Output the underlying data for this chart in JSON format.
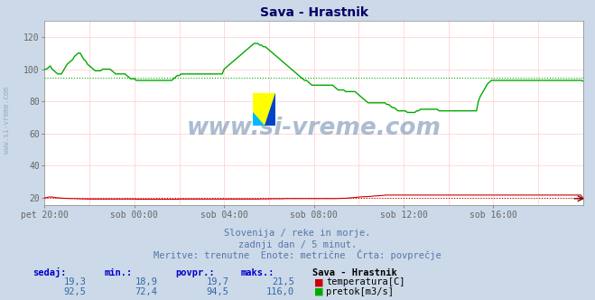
{
  "title": "Sava - Hrastnik",
  "background_color": "#ccd9e8",
  "plot_bg_color": "#ffffff",
  "grid_color": "#ffcccc",
  "xlim": [
    0,
    288
  ],
  "ylim": [
    15,
    130
  ],
  "yticks": [
    20,
    40,
    60,
    80,
    100,
    120
  ],
  "xtick_labels": [
    "pet 20:00",
    "sob 00:00",
    "sob 04:00",
    "sob 08:00",
    "sob 12:00",
    "sob 16:00"
  ],
  "xtick_positions": [
    0,
    48,
    96,
    144,
    192,
    240
  ],
  "avg_temp": 19.7,
  "avg_flow": 94.5,
  "temp_color": "#cc0000",
  "flow_color": "#00aa00",
  "watermark": "www.si-vreme.com",
  "subtitle1": "Slovenija / reke in morje.",
  "subtitle2": "zadnji dan / 5 minut.",
  "subtitle3": "Meritve: trenutne  Enote: metrične  Črta: povprečje",
  "footer_headers": [
    "sedaj:",
    "min.:",
    "povpr.:",
    "maks.:"
  ],
  "footer_temp": [
    "19,3",
    "18,9",
    "19,7",
    "21,5"
  ],
  "footer_flow": [
    "92,5",
    "72,4",
    "94,5",
    "116,0"
  ],
  "footer_station": "Sava - Hrastnik",
  "footer_label_temp": "temperatura[C]",
  "footer_label_flow": "pretok[m3/s]",
  "sidebar_text": "www.si-vreme.com",
  "temp_data": [
    19.8,
    20.0,
    20.3,
    20.3,
    20.2,
    20.0,
    19.8,
    19.7,
    19.6,
    19.5,
    19.4,
    19.4,
    19.3,
    19.3,
    19.3,
    19.2,
    19.2,
    19.1,
    19.1,
    19.1,
    19.0,
    19.0,
    19.0,
    19.0,
    19.0,
    19.0,
    19.0,
    19.0,
    19.0,
    19.0,
    19.0,
    19.0,
    19.0,
    19.0,
    19.0,
    19.0,
    19.0,
    19.0,
    19.0,
    19.0,
    19.0,
    19.0,
    19.0,
    18.9,
    18.9,
    18.9,
    18.9,
    18.9,
    18.9,
    18.9,
    18.9,
    18.9,
    18.9,
    18.9,
    18.9,
    18.9,
    18.9,
    18.9,
    18.9,
    18.9,
    18.9,
    18.9,
    18.9,
    19.0,
    19.0,
    19.0,
    19.0,
    19.0,
    19.0,
    19.0,
    19.0,
    19.0,
    19.0,
    19.0,
    19.0,
    19.0,
    19.0,
    19.0,
    19.0,
    19.0,
    19.0,
    19.0,
    19.0,
    19.0,
    19.0,
    19.0,
    19.0,
    19.0,
    19.0,
    19.0,
    19.0,
    19.0,
    19.0,
    19.0,
    19.0,
    19.0,
    19.0,
    19.0,
    19.0,
    19.0,
    19.0,
    19.1,
    19.1,
    19.1,
    19.1,
    19.1,
    19.2,
    19.2,
    19.2,
    19.2,
    19.2,
    19.2,
    19.3,
    19.3,
    19.3,
    19.3,
    19.3,
    19.3,
    19.3,
    19.3,
    19.3,
    19.3,
    19.3,
    19.3,
    19.3,
    19.3,
    19.3,
    19.3,
    19.3,
    19.3,
    19.3,
    19.3,
    19.3,
    19.3,
    19.3,
    19.3,
    19.3,
    19.4,
    19.4,
    19.5,
    19.5,
    19.6,
    19.7,
    19.8,
    19.9,
    20.0,
    20.2,
    20.3,
    20.4,
    20.5,
    20.5,
    20.6,
    20.7,
    20.8,
    21.0,
    21.0,
    21.1,
    21.2,
    21.3,
    21.5,
    21.5,
    21.5,
    21.5,
    21.5,
    21.5,
    21.5,
    21.5,
    21.5,
    21.5,
    21.5,
    21.5,
    21.5,
    21.5,
    21.5,
    21.5,
    21.5,
    21.5,
    21.5,
    21.5,
    21.5,
    21.5,
    21.5,
    21.5,
    21.5,
    21.5,
    21.5,
    21.5,
    21.5,
    21.5,
    21.5,
    21.5,
    21.5,
    21.5,
    21.5,
    21.5,
    21.5,
    21.5,
    21.5,
    21.5,
    21.5,
    21.5,
    21.5,
    21.5,
    21.5,
    21.5,
    21.5,
    21.5,
    21.5,
    21.5,
    21.5,
    21.5,
    21.5,
    21.5,
    21.5,
    21.5,
    21.5,
    21.5,
    21.5,
    21.5,
    21.5,
    21.5,
    21.5,
    21.5,
    21.5,
    21.5,
    21.5,
    21.5,
    21.5,
    21.5,
    21.5,
    21.5,
    21.5,
    21.5,
    21.5,
    21.5,
    21.5,
    21.5,
    21.5,
    21.5,
    21.5,
    21.5,
    21.5,
    21.5,
    21.5,
    21.5,
    21.5,
    21.5,
    21.5,
    21.5,
    21.5,
    21.5,
    19.3
  ],
  "flow_data": [
    100,
    100,
    101,
    102,
    100,
    99,
    98,
    97,
    97,
    97,
    99,
    101,
    103,
    104,
    105,
    106,
    108,
    109,
    110,
    110,
    108,
    106,
    105,
    103,
    102,
    101,
    100,
    99,
    99,
    99,
    99,
    100,
    100,
    100,
    100,
    100,
    99,
    98,
    97,
    97,
    97,
    97,
    97,
    97,
    96,
    95,
    94,
    94,
    94,
    93,
    93,
    93,
    93,
    93,
    93,
    93,
    93,
    93,
    93,
    93,
    93,
    93,
    93,
    93,
    93,
    93,
    93,
    93,
    93,
    94,
    95,
    96,
    96,
    97,
    97,
    97,
    97,
    97,
    97,
    97,
    97,
    97,
    97,
    97,
    97,
    97,
    97,
    97,
    97,
    97,
    97,
    97,
    97,
    97,
    97,
    97,
    100,
    101,
    102,
    103,
    104,
    105,
    106,
    107,
    108,
    109,
    110,
    111,
    112,
    113,
    114,
    115,
    116,
    116,
    116,
    115,
    115,
    114,
    114,
    113,
    112,
    111,
    110,
    109,
    108,
    107,
    106,
    105,
    104,
    103,
    102,
    101,
    100,
    99,
    98,
    97,
    96,
    95,
    94,
    93,
    93,
    92,
    91,
    90,
    90,
    90,
    90,
    90,
    90,
    90,
    90,
    90,
    90,
    90,
    90,
    89,
    88,
    87,
    87,
    87,
    87,
    86,
    86,
    86,
    86,
    86,
    86,
    85,
    84,
    83,
    82,
    81,
    80,
    79,
    79,
    79,
    79,
    79,
    79,
    79,
    79,
    79,
    79,
    78,
    78,
    77,
    76,
    76,
    75,
    74,
    74,
    74,
    74,
    74,
    73,
    73,
    73,
    73,
    73,
    74,
    74,
    75,
    75,
    75,
    75,
    75,
    75,
    75,
    75,
    75,
    75,
    74,
    74,
    74,
    74,
    74,
    74,
    74,
    74,
    74,
    74,
    74,
    74,
    74,
    74,
    74,
    74,
    74,
    74,
    74,
    74,
    74,
    80,
    83,
    85,
    87,
    89,
    91,
    92,
    93,
    93,
    93,
    93,
    93,
    93,
    93,
    93,
    93,
    93,
    93,
    93,
    93,
    93,
    93,
    93,
    93,
    93,
    93,
    93,
    93,
    93,
    93,
    93,
    93,
    93,
    93,
    93,
    93,
    93,
    93,
    93,
    93,
    93,
    93,
    93,
    93,
    93,
    93,
    93,
    93,
    93,
    93,
    93,
    93,
    93,
    93,
    93,
    93,
    92.5
  ]
}
